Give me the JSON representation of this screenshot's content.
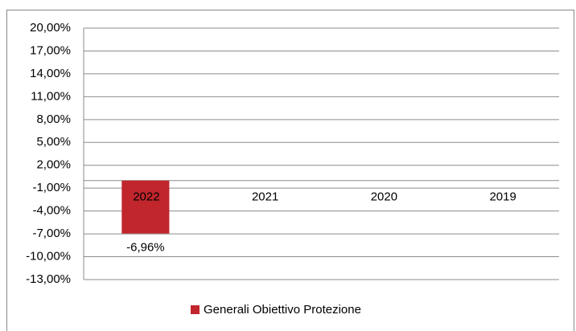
{
  "chart_data": {
    "type": "bar",
    "categories": [
      "2022",
      "2021",
      "2020",
      "2019"
    ],
    "series": [
      {
        "name": "Generali Obiettivo Protezione",
        "color": "#c0262c",
        "values": [
          -6.96,
          null,
          null,
          null
        ],
        "value_labels": [
          "-6,96%",
          null,
          null,
          null
        ]
      }
    ],
    "ylim": [
      -13,
      20
    ],
    "yticks": [
      {
        "value": 20,
        "label": "20,00%"
      },
      {
        "value": 17,
        "label": "17,00%"
      },
      {
        "value": 14,
        "label": "14,00%"
      },
      {
        "value": 11,
        "label": "11,00%"
      },
      {
        "value": 8,
        "label": "8,00%"
      },
      {
        "value": 5,
        "label": "5,00%"
      },
      {
        "value": 2,
        "label": "2,00%"
      },
      {
        "value": -1,
        "label": "-1,00%"
      },
      {
        "value": -4,
        "label": "-4,00%"
      },
      {
        "value": -7,
        "label": "-7,00%"
      },
      {
        "value": -10,
        "label": "-10,00%"
      },
      {
        "value": -13,
        "label": "-13,00%"
      }
    ],
    "grid": true,
    "legend": "bottom"
  }
}
